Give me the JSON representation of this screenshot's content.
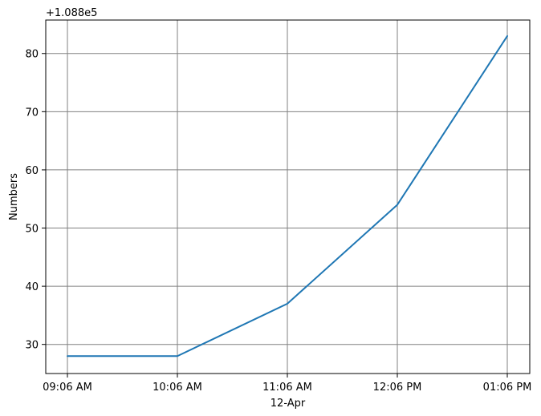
{
  "chart_data": {
    "type": "line",
    "title": "",
    "xlabel": "12-Apr",
    "ylabel": "Numbers",
    "y_offset_label": "+1.088e5",
    "x_tick_labels": [
      "09:06 AM",
      "10:06 AM",
      "11:06 AM",
      "12:06 PM",
      "01:06 PM"
    ],
    "y_ticks": [
      30,
      40,
      50,
      60,
      70,
      80
    ],
    "ylim": [
      25,
      85.75
    ],
    "grid": true,
    "line_color": "#1f77b4",
    "grid_color": "#808080",
    "series": [
      {
        "values": [
          28,
          28,
          37,
          54,
          83
        ]
      }
    ]
  }
}
